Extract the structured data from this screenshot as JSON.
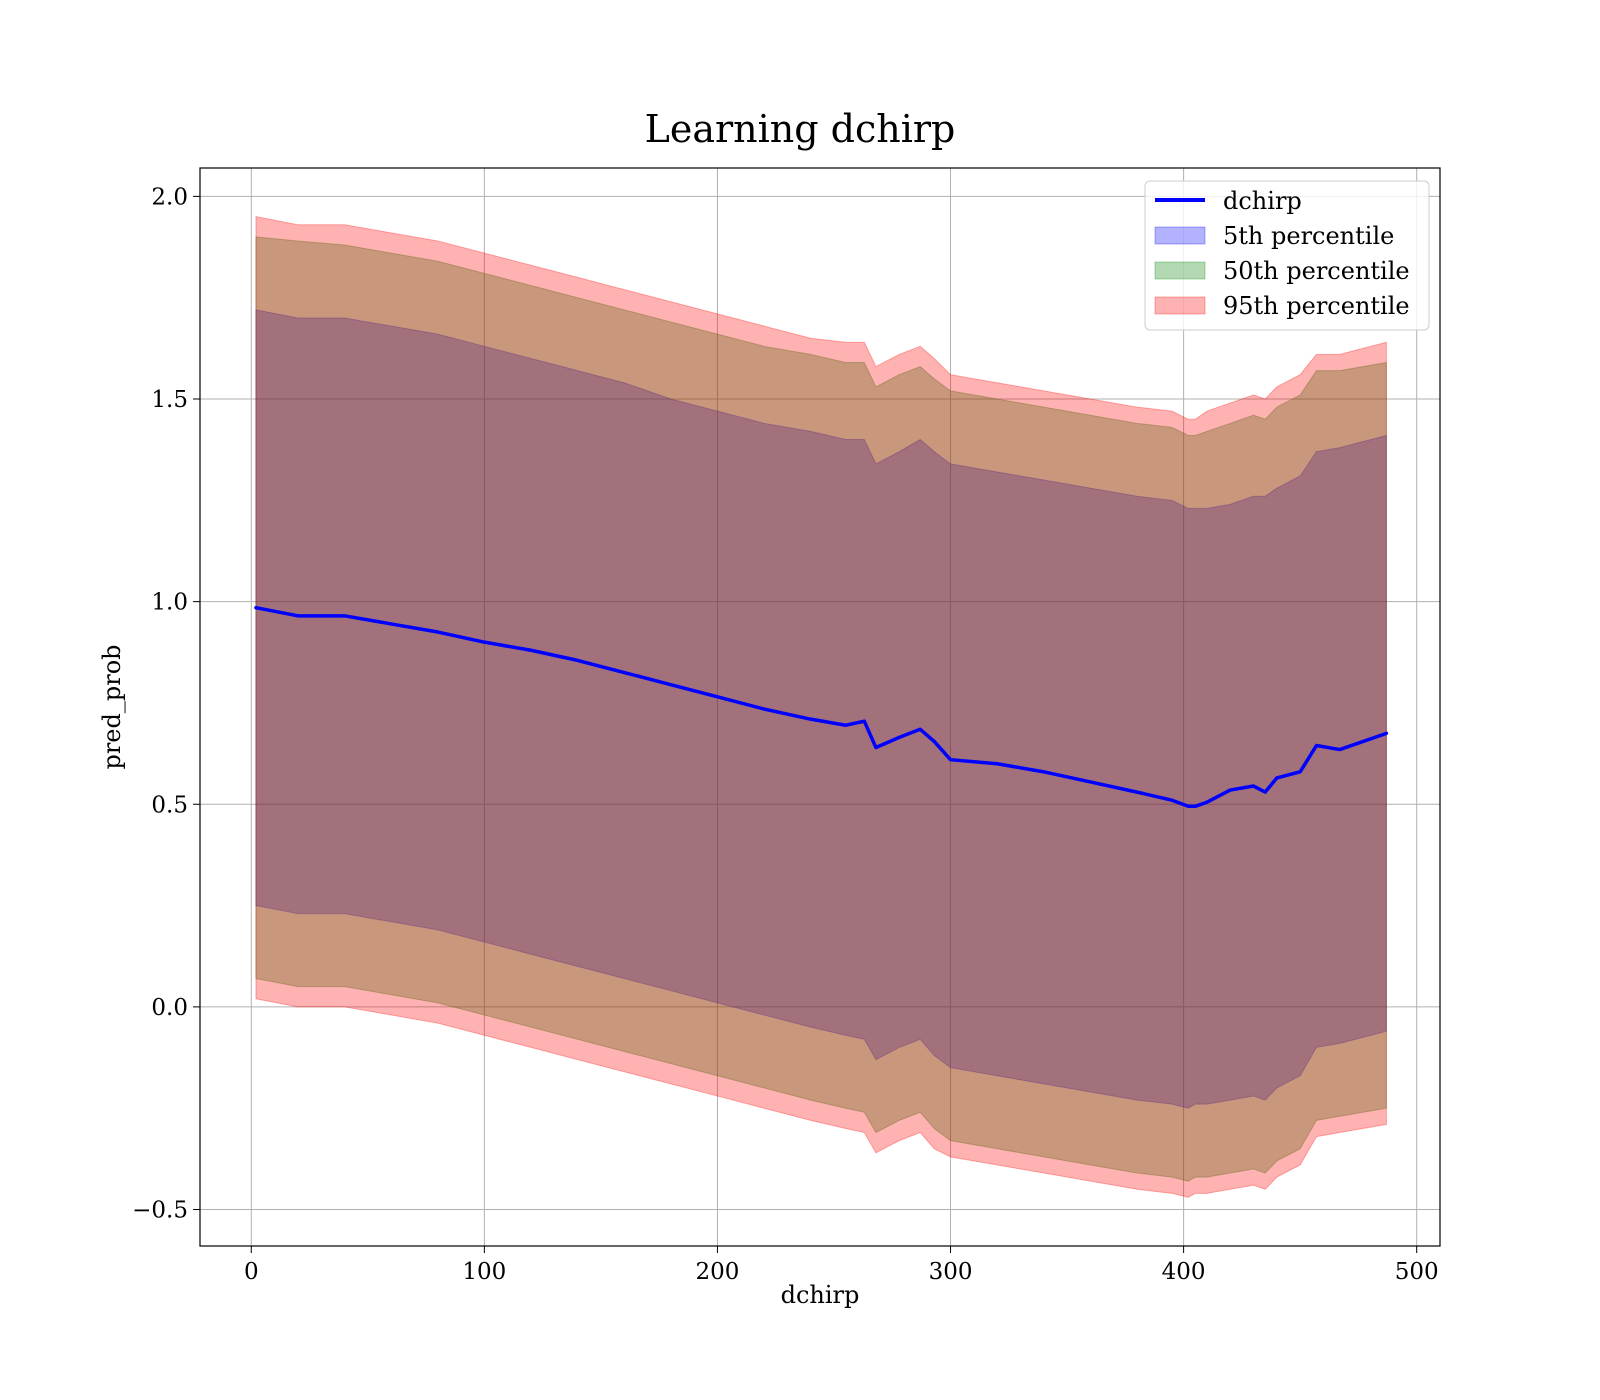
{
  "chart_data": {
    "type": "area",
    "title": "Learning dchirp",
    "xlabel": "dchirp",
    "ylabel": "pred_prob",
    "xlim": [
      -22,
      510
    ],
    "ylim": [
      -0.59,
      2.07
    ],
    "xticks": [
      0,
      100,
      200,
      300,
      400,
      500
    ],
    "yticks": [
      -0.5,
      0.0,
      0.5,
      1.0,
      1.5,
      2.0
    ],
    "xtick_labels": [
      "0",
      "100",
      "200",
      "300",
      "400",
      "500"
    ],
    "ytick_labels": [
      "−0.5",
      "0.0",
      "0.5",
      "1.0",
      "1.5",
      "2.0"
    ],
    "grid": true,
    "legend_position": "top-right",
    "x": [
      2,
      20,
      40,
      60,
      80,
      100,
      120,
      140,
      160,
      180,
      200,
      220,
      240,
      255,
      263,
      268,
      278,
      287,
      293,
      300,
      320,
      340,
      360,
      380,
      395,
      402,
      405,
      410,
      420,
      430,
      435,
      440,
      450,
      457,
      467,
      487
    ],
    "series": [
      {
        "name": "dchirp",
        "kind": "line",
        "color": "#0000ff",
        "values": [
          0.985,
          0.965,
          0.965,
          0.945,
          0.925,
          0.9,
          0.88,
          0.855,
          0.825,
          0.795,
          0.765,
          0.735,
          0.71,
          0.695,
          0.705,
          0.64,
          0.665,
          0.685,
          0.655,
          0.61,
          0.6,
          0.58,
          0.555,
          0.53,
          0.51,
          0.495,
          0.495,
          0.505,
          0.535,
          0.545,
          0.53,
          0.565,
          0.58,
          0.645,
          0.635,
          0.675
        ]
      },
      {
        "name": "5th percentile",
        "kind": "band",
        "color": "#0000ff",
        "opacity": 0.3,
        "upper": [
          1.72,
          1.7,
          1.7,
          1.68,
          1.66,
          1.63,
          1.6,
          1.57,
          1.54,
          1.5,
          1.47,
          1.44,
          1.42,
          1.4,
          1.4,
          1.34,
          1.37,
          1.4,
          1.37,
          1.34,
          1.32,
          1.3,
          1.28,
          1.26,
          1.25,
          1.23,
          1.23,
          1.23,
          1.24,
          1.26,
          1.26,
          1.28,
          1.31,
          1.37,
          1.38,
          1.41
        ],
        "lower": [
          0.25,
          0.23,
          0.23,
          0.21,
          0.19,
          0.16,
          0.13,
          0.1,
          0.07,
          0.04,
          0.01,
          -0.02,
          -0.05,
          -0.07,
          -0.08,
          -0.13,
          -0.1,
          -0.08,
          -0.12,
          -0.15,
          -0.17,
          -0.19,
          -0.21,
          -0.23,
          -0.24,
          -0.25,
          -0.24,
          -0.24,
          -0.23,
          -0.22,
          -0.23,
          -0.2,
          -0.17,
          -0.1,
          -0.09,
          -0.06
        ]
      },
      {
        "name": "50th percentile",
        "kind": "band",
        "color": "#008000",
        "opacity": 0.3,
        "upper": [
          1.9,
          1.89,
          1.88,
          1.86,
          1.84,
          1.81,
          1.78,
          1.75,
          1.72,
          1.69,
          1.66,
          1.63,
          1.61,
          1.59,
          1.59,
          1.53,
          1.56,
          1.58,
          1.55,
          1.52,
          1.5,
          1.48,
          1.46,
          1.44,
          1.43,
          1.41,
          1.41,
          1.42,
          1.44,
          1.46,
          1.45,
          1.48,
          1.51,
          1.57,
          1.57,
          1.59
        ],
        "lower": [
          0.07,
          0.05,
          0.05,
          0.03,
          0.01,
          -0.02,
          -0.05,
          -0.08,
          -0.11,
          -0.14,
          -0.17,
          -0.2,
          -0.23,
          -0.25,
          -0.26,
          -0.31,
          -0.28,
          -0.26,
          -0.3,
          -0.33,
          -0.35,
          -0.37,
          -0.39,
          -0.41,
          -0.42,
          -0.43,
          -0.42,
          -0.42,
          -0.41,
          -0.4,
          -0.41,
          -0.38,
          -0.35,
          -0.28,
          -0.27,
          -0.25
        ]
      },
      {
        "name": "95th percentile",
        "kind": "band",
        "color": "#ff0000",
        "opacity": 0.3,
        "upper": [
          1.95,
          1.93,
          1.93,
          1.91,
          1.89,
          1.86,
          1.83,
          1.8,
          1.77,
          1.74,
          1.71,
          1.68,
          1.65,
          1.64,
          1.64,
          1.58,
          1.61,
          1.63,
          1.6,
          1.56,
          1.54,
          1.52,
          1.5,
          1.48,
          1.47,
          1.45,
          1.45,
          1.47,
          1.49,
          1.51,
          1.5,
          1.53,
          1.56,
          1.61,
          1.61,
          1.64
        ],
        "lower": [
          0.02,
          0.0,
          0.0,
          -0.02,
          -0.04,
          -0.07,
          -0.1,
          -0.13,
          -0.16,
          -0.19,
          -0.22,
          -0.25,
          -0.28,
          -0.3,
          -0.31,
          -0.36,
          -0.33,
          -0.31,
          -0.35,
          -0.37,
          -0.39,
          -0.41,
          -0.43,
          -0.45,
          -0.46,
          -0.47,
          -0.46,
          -0.46,
          -0.45,
          -0.44,
          -0.45,
          -0.42,
          -0.39,
          -0.32,
          -0.31,
          -0.29
        ]
      }
    ]
  }
}
